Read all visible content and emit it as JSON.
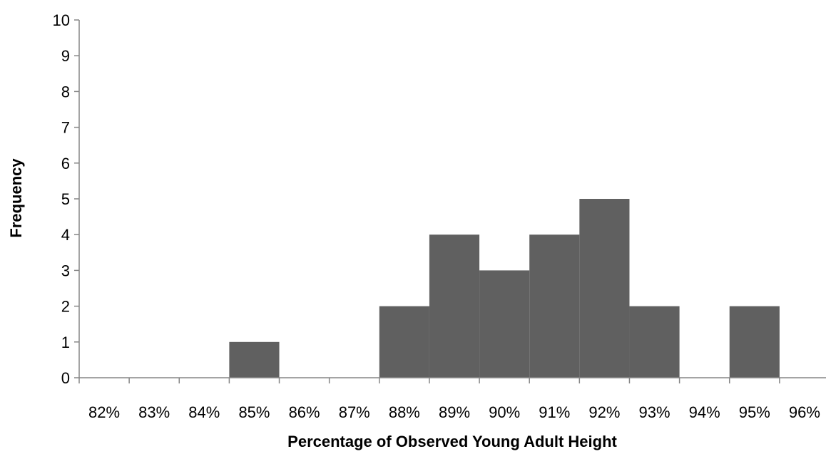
{
  "chart_data": {
    "type": "bar",
    "title": "",
    "xlabel": "Percentage of Observed Young Adult Height",
    "ylabel": "Frequency",
    "x_ticks": [
      "82%",
      "83%",
      "84%",
      "85%",
      "86%",
      "87%",
      "88%",
      "89%",
      "90%",
      "91%",
      "92%",
      "93%",
      "94%",
      "95%",
      "96%"
    ],
    "y_ticks": [
      "0",
      "1",
      "2",
      "3",
      "4",
      "5",
      "6",
      "7",
      "8",
      "9",
      "10"
    ],
    "ylim": [
      0,
      10
    ],
    "bins": [
      {
        "start": 82,
        "end": 83,
        "value": 0
      },
      {
        "start": 83,
        "end": 84,
        "value": 0
      },
      {
        "start": 84,
        "end": 85,
        "value": 0
      },
      {
        "start": 85,
        "end": 86,
        "value": 1
      },
      {
        "start": 86,
        "end": 87,
        "value": 0
      },
      {
        "start": 87,
        "end": 88,
        "value": 0
      },
      {
        "start": 88,
        "end": 89,
        "value": 2
      },
      {
        "start": 89,
        "end": 90,
        "value": 4
      },
      {
        "start": 90,
        "end": 91,
        "value": 3
      },
      {
        "start": 91,
        "end": 92,
        "value": 4
      },
      {
        "start": 92,
        "end": 93,
        "value": 5
      },
      {
        "start": 93,
        "end": 94,
        "value": 2
      },
      {
        "start": 94,
        "end": 95,
        "value": 0
      },
      {
        "start": 95,
        "end": 96,
        "value": 2
      }
    ],
    "bar_color": "#606060",
    "axis_color": "#868686",
    "grid": false,
    "legend": "none"
  }
}
